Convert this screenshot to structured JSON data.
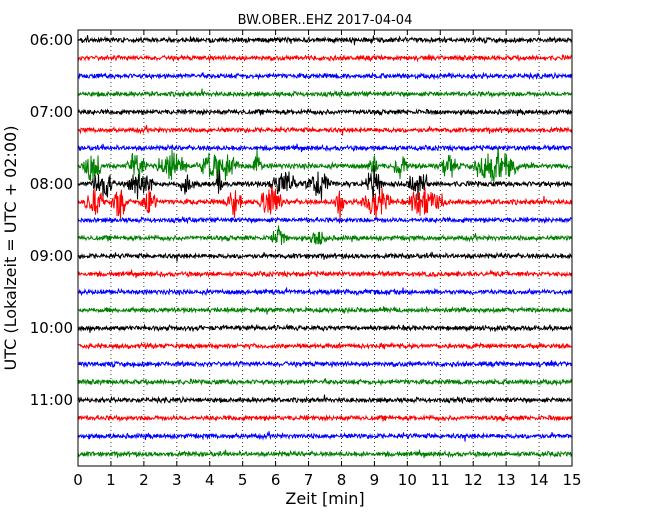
{
  "chart_data": {
    "type": "line",
    "title": "BW.OBER..EHZ 2017-04-04",
    "xlabel": "Zeit  [min]",
    "ylabel": "UTC (Lokalzeit = UTC + 02:00)",
    "xlim": [
      0,
      15
    ],
    "x_ticks": [
      "0",
      "1",
      "2",
      "3",
      "4",
      "5",
      "6",
      "7",
      "8",
      "9",
      "10",
      "11",
      "12",
      "13",
      "14",
      "15"
    ],
    "y_ticks": [
      "06:00",
      "07:00",
      "08:00",
      "09:00",
      "10:00",
      "11:00"
    ],
    "y_tick_trace_index": [
      0,
      4,
      8,
      12,
      16,
      20
    ],
    "trace_interval_minutes": 15,
    "start_time": "06:00",
    "grid": "vertical dotted",
    "colors": [
      "#000000",
      "#ff0000",
      "#0000ff",
      "#008000"
    ],
    "traces": [
      {
        "start": "06:00",
        "color": "#000000",
        "amplitude": "low"
      },
      {
        "start": "06:15",
        "color": "#ff0000",
        "amplitude": "low"
      },
      {
        "start": "06:30",
        "color": "#0000ff",
        "amplitude": "low"
      },
      {
        "start": "06:45",
        "color": "#008000",
        "amplitude": "low"
      },
      {
        "start": "07:00",
        "color": "#000000",
        "amplitude": "low"
      },
      {
        "start": "07:15",
        "color": "#ff0000",
        "amplitude": "low"
      },
      {
        "start": "07:30",
        "color": "#0000ff",
        "amplitude": "low"
      },
      {
        "start": "07:45",
        "color": "#008000",
        "amplitude": "high",
        "bursts": [
          [
            0.1,
            0.7
          ],
          [
            1.5,
            2.1
          ],
          [
            2.4,
            3.3
          ],
          [
            3.6,
            4.9
          ],
          [
            5.3,
            5.6
          ],
          [
            8.8,
            9.1
          ],
          [
            9.6,
            10.0
          ],
          [
            11.0,
            11.5
          ],
          [
            12.0,
            13.4
          ]
        ]
      },
      {
        "start": "08:00",
        "color": "#000000",
        "amplitude": "high",
        "bursts": [
          [
            0.4,
            1.1
          ],
          [
            1.5,
            2.3
          ],
          [
            3.1,
            3.5
          ],
          [
            4.2,
            4.4
          ],
          [
            5.8,
            6.6
          ],
          [
            6.9,
            7.7
          ],
          [
            8.7,
            9.3
          ],
          [
            10.0,
            10.6
          ]
        ]
      },
      {
        "start": "08:15",
        "color": "#ff0000",
        "amplitude": "high",
        "bursts": [
          [
            0.2,
            0.8
          ],
          [
            1.0,
            1.5
          ],
          [
            1.9,
            2.4
          ],
          [
            4.5,
            5.0
          ],
          [
            5.5,
            6.2
          ],
          [
            7.8,
            8.1
          ],
          [
            8.6,
            9.5
          ],
          [
            10.0,
            11.2
          ]
        ]
      },
      {
        "start": "08:30",
        "color": "#0000ff",
        "amplitude": "low"
      },
      {
        "start": "08:45",
        "color": "#008000",
        "amplitude": "medium",
        "bursts": [
          [
            5.8,
            6.4
          ],
          [
            7.0,
            7.6
          ]
        ]
      },
      {
        "start": "09:00",
        "color": "#000000",
        "amplitude": "low"
      },
      {
        "start": "09:15",
        "color": "#ff0000",
        "amplitude": "low"
      },
      {
        "start": "09:30",
        "color": "#0000ff",
        "amplitude": "low"
      },
      {
        "start": "09:45",
        "color": "#008000",
        "amplitude": "low"
      },
      {
        "start": "10:00",
        "color": "#000000",
        "amplitude": "low"
      },
      {
        "start": "10:15",
        "color": "#ff0000",
        "amplitude": "low"
      },
      {
        "start": "10:30",
        "color": "#0000ff",
        "amplitude": "low"
      },
      {
        "start": "10:45",
        "color": "#008000",
        "amplitude": "low"
      },
      {
        "start": "11:00",
        "color": "#000000",
        "amplitude": "low"
      },
      {
        "start": "11:15",
        "color": "#ff0000",
        "amplitude": "low"
      },
      {
        "start": "11:30",
        "color": "#0000ff",
        "amplitude": "low"
      },
      {
        "start": "11:45",
        "color": "#008000",
        "amplitude": "low"
      }
    ]
  }
}
